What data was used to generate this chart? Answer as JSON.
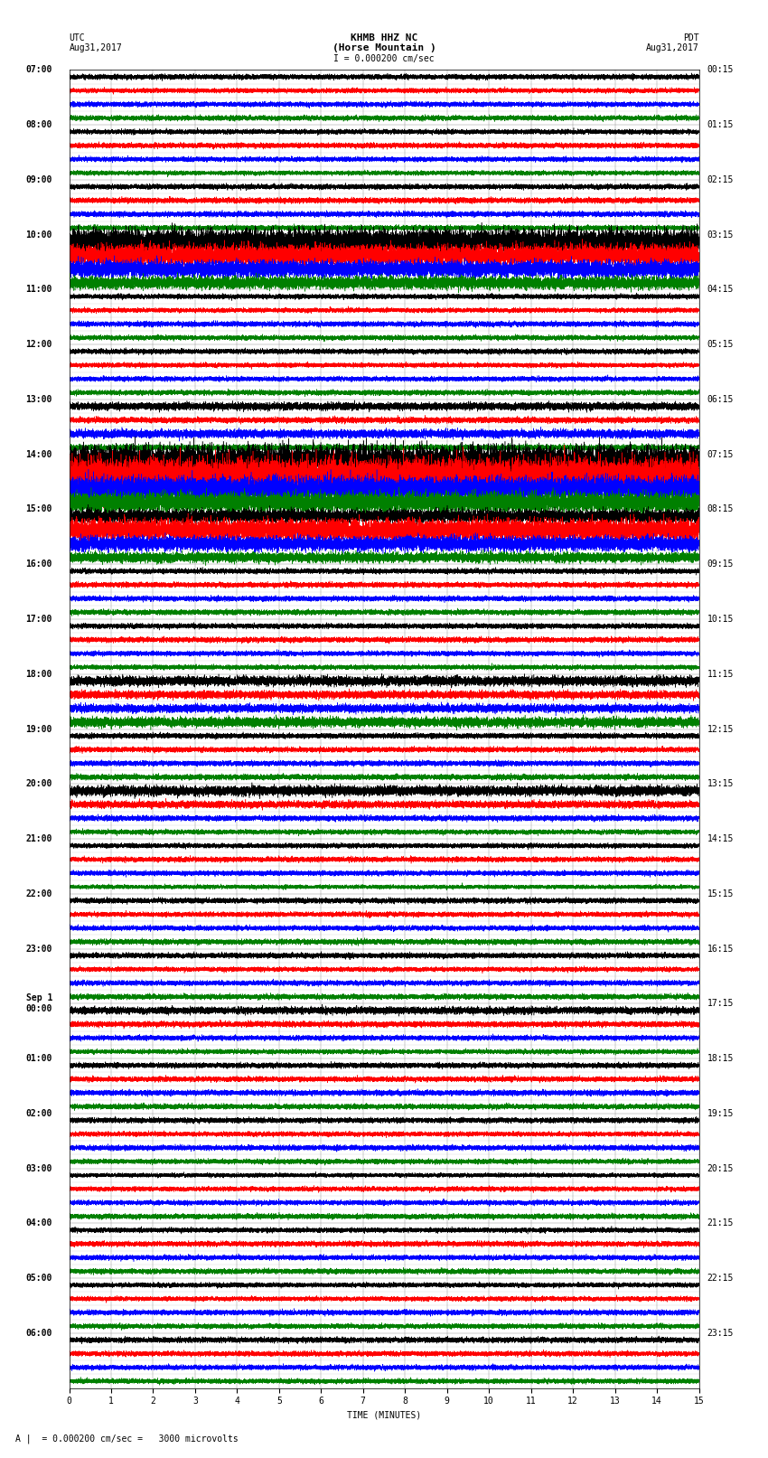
{
  "title_line1": "KHMB HHZ NC",
  "title_line2": "(Horse Mountain )",
  "title_left_top": "UTC",
  "title_left_date": "Aug31,2017",
  "title_right_top": "PDT",
  "title_right_date": "Aug31,2017",
  "scale_label": "I = 0.000200 cm/sec",
  "bottom_label": "A |  = 0.000200 cm/sec =   3000 microvolts",
  "xlabel": "TIME (MINUTES)",
  "xticks": [
    0,
    1,
    2,
    3,
    4,
    5,
    6,
    7,
    8,
    9,
    10,
    11,
    12,
    13,
    14,
    15
  ],
  "left_times": [
    "07:00",
    "",
    "",
    "",
    "08:00",
    "",
    "",
    "",
    "09:00",
    "",
    "",
    "",
    "10:00",
    "",
    "",
    "",
    "11:00",
    "",
    "",
    "",
    "12:00",
    "",
    "",
    "",
    "13:00",
    "",
    "",
    "",
    "14:00",
    "",
    "",
    "",
    "15:00",
    "",
    "",
    "",
    "16:00",
    "",
    "",
    "",
    "17:00",
    "",
    "",
    "",
    "18:00",
    "",
    "",
    "",
    "19:00",
    "",
    "",
    "",
    "20:00",
    "",
    "",
    "",
    "21:00",
    "",
    "",
    "",
    "22:00",
    "",
    "",
    "",
    "23:00",
    "",
    "",
    "",
    "Sep 1\n00:00",
    "",
    "",
    "",
    "01:00",
    "",
    "",
    "",
    "02:00",
    "",
    "",
    "",
    "03:00",
    "",
    "",
    "",
    "04:00",
    "",
    "",
    "",
    "05:00",
    "",
    "",
    "",
    "06:00",
    "",
    "",
    ""
  ],
  "right_times": [
    "00:15",
    "",
    "",
    "",
    "01:15",
    "",
    "",
    "",
    "02:15",
    "",
    "",
    "",
    "03:15",
    "",
    "",
    "",
    "04:15",
    "",
    "",
    "",
    "05:15",
    "",
    "",
    "",
    "06:15",
    "",
    "",
    "",
    "07:15",
    "",
    "",
    "",
    "08:15",
    "",
    "",
    "",
    "09:15",
    "",
    "",
    "",
    "10:15",
    "",
    "",
    "",
    "11:15",
    "",
    "",
    "",
    "12:15",
    "",
    "",
    "",
    "13:15",
    "",
    "",
    "",
    "14:15",
    "",
    "",
    "",
    "15:15",
    "",
    "",
    "",
    "16:15",
    "",
    "",
    "",
    "17:15",
    "",
    "",
    "",
    "18:15",
    "",
    "",
    "",
    "19:15",
    "",
    "",
    "",
    "20:15",
    "",
    "",
    "",
    "21:15",
    "",
    "",
    "",
    "22:15",
    "",
    "",
    "",
    "23:15",
    "",
    "",
    ""
  ],
  "colors": [
    "black",
    "red",
    "blue",
    "green"
  ],
  "bg_color": "white",
  "num_rows": 96,
  "minutes": 15,
  "sample_rate": 50,
  "font_size": 7,
  "title_font_size": 8,
  "high_amp_rows": {
    "12": 5.0,
    "13": 4.0,
    "14": 3.5,
    "15": 2.5,
    "24": 1.5,
    "25": 1.2,
    "26": 1.8,
    "27": 1.2,
    "28": 6.0,
    "29": 8.0,
    "30": 5.0,
    "31": 4.0,
    "32": 3.0,
    "33": 4.5,
    "34": 3.0,
    "35": 2.0,
    "44": 1.8,
    "45": 1.5,
    "46": 1.8,
    "47": 2.0,
    "52": 2.0,
    "53": 1.5,
    "68": 1.5,
    "69": 1.2
  }
}
